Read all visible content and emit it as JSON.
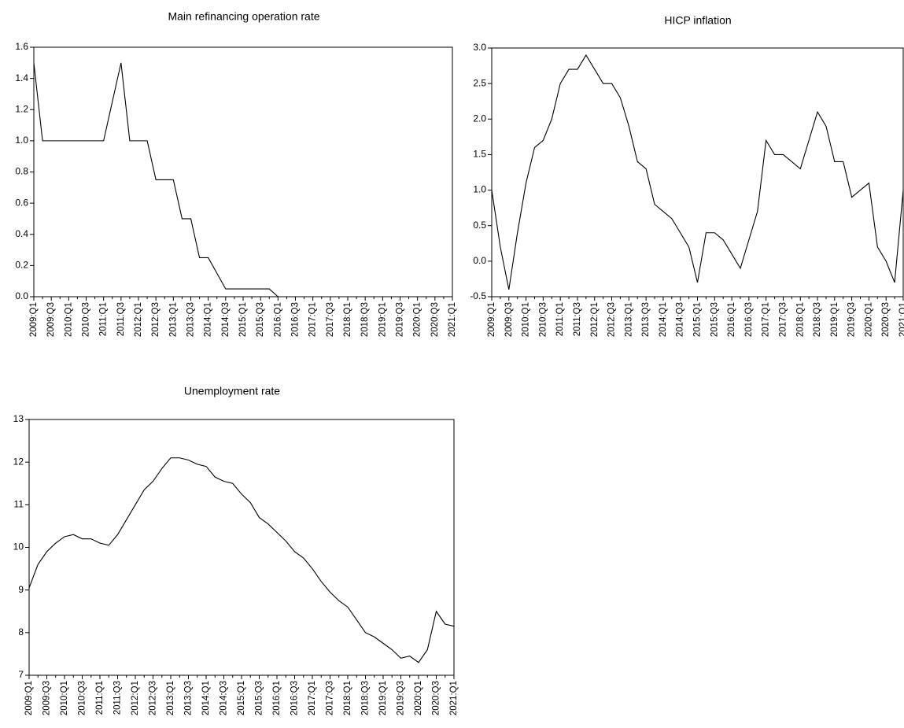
{
  "chart_data": [
    {
      "type": "line",
      "title": "Main refinancing operation rate",
      "categories": [
        "2009:Q1",
        null,
        "2009:Q3",
        null,
        "2010:Q1",
        null,
        "2010:Q3",
        null,
        "2011:Q1",
        null,
        "2011:Q3",
        null,
        "2012:Q1",
        null,
        "2012:Q3",
        null,
        "2013:Q1",
        null,
        "2013:Q3",
        null,
        "2014:Q1",
        null,
        "2014:Q3",
        null,
        "2015:Q1",
        null,
        "2015:Q3",
        null,
        "2016:Q1",
        null,
        "2016:Q3",
        null,
        "2017:Q1",
        null,
        "2017:Q3",
        null,
        "2018:Q1",
        null,
        "2018:Q3",
        null,
        "2019:Q1",
        null,
        "2019:Q3",
        null,
        "2020:Q1",
        null,
        "2020:Q3",
        null,
        "2021:Q1"
      ],
      "values": [
        1.5,
        1.0,
        1.0,
        1.0,
        1.0,
        1.0,
        1.0,
        1.0,
        1.0,
        1.25,
        1.5,
        1.0,
        1.0,
        1.0,
        0.75,
        0.75,
        0.75,
        0.5,
        0.5,
        0.25,
        0.25,
        0.15,
        0.05,
        0.05,
        0.05,
        0.05,
        0.05,
        0.05,
        0,
        0,
        0,
        0,
        0,
        0,
        0,
        0,
        0,
        0,
        0,
        0,
        0,
        0,
        0,
        0,
        0,
        0,
        0,
        0,
        0
      ],
      "color": "#000000",
      "ylim": [
        0,
        1.6
      ],
      "yticks": [
        {
          "value": 0,
          "label": "0.0"
        },
        0.2,
        0.4,
        0.6,
        0.8,
        {
          "value": 1,
          "label": "1.0"
        },
        1.2,
        1.4,
        1.6
      ]
    },
    {
      "type": "line",
      "title": "HICP inflation",
      "categories": [
        "2009:Q1",
        null,
        "2009:Q3",
        null,
        "2010:Q1",
        null,
        "2010:Q3",
        null,
        "2011:Q1",
        null,
        "2011:Q3",
        null,
        "2012:Q1",
        null,
        "2012:Q3",
        null,
        "2013:Q1",
        null,
        "2013:Q3",
        null,
        "2014:Q1",
        null,
        "2014:Q3",
        null,
        "2015:Q1",
        null,
        "2015:Q3",
        null,
        "2016:Q1",
        null,
        "2016:Q3",
        null,
        "2017:Q1",
        null,
        "2017:Q3",
        null,
        "2018:Q1",
        null,
        "2018:Q3",
        null,
        "2019:Q1",
        null,
        "2019:Q3",
        null,
        "2020:Q1",
        null,
        "2020:Q3",
        null,
        "2021:Q1"
      ],
      "values": [
        1.0,
        0.2,
        -0.4,
        0.4,
        1.1,
        1.6,
        1.7,
        2.0,
        2.5,
        2.7,
        2.7,
        2.9,
        2.7,
        2.5,
        2.5,
        2.3,
        1.9,
        1.4,
        1.3,
        0.8,
        0.7,
        0.6,
        0.4,
        0.2,
        -0.3,
        0.4,
        0.4,
        0.3,
        0.1,
        -0.1,
        0.3,
        0.7,
        1.7,
        1.5,
        1.5,
        1.4,
        1.3,
        1.7,
        2.1,
        1.9,
        1.4,
        1.4,
        0.9,
        1.0,
        1.1,
        0.2,
        0.0,
        -0.3,
        1.0
      ],
      "color": "#000000",
      "ylim": [
        -0.5,
        3.0
      ],
      "yticks": [
        -0.5,
        {
          "value": 0,
          "label": "0.0"
        },
        0.5,
        {
          "value": 1,
          "label": "1.0"
        },
        1.5,
        {
          "value": 2,
          "label": "2.0"
        },
        2.5,
        {
          "value": 3,
          "label": "3.0"
        }
      ]
    },
    {
      "type": "line",
      "title": "Unemployment rate",
      "categories": [
        "2009:Q1",
        null,
        "2009:Q3",
        null,
        "2010:Q1",
        null,
        "2010:Q3",
        null,
        "2011:Q1",
        null,
        "2011:Q3",
        null,
        "2012:Q1",
        null,
        "2012:Q3",
        null,
        "2013:Q1",
        null,
        "2013:Q3",
        null,
        "2014:Q1",
        null,
        "2014:Q3",
        null,
        "2015:Q1",
        null,
        "2015:Q3",
        null,
        "2016:Q1",
        null,
        "2016:Q3",
        null,
        "2017:Q1",
        null,
        "2017:Q3",
        null,
        "2018:Q1",
        null,
        "2018:Q3",
        null,
        "2019:Q1",
        null,
        "2019:Q3",
        null,
        "2020:Q1",
        null,
        "2020:Q3",
        null,
        "2021:Q1"
      ],
      "values": [
        9.05,
        9.6,
        9.9,
        10.1,
        10.25,
        10.3,
        10.2,
        10.2,
        10.1,
        10.05,
        10.3,
        10.65,
        11.0,
        11.35,
        11.55,
        11.85,
        12.1,
        12.1,
        12.05,
        11.95,
        11.9,
        11.65,
        11.55,
        11.5,
        11.25,
        11.05,
        10.7,
        10.55,
        10.35,
        10.15,
        9.9,
        9.75,
        9.5,
        9.2,
        8.95,
        8.75,
        8.6,
        8.3,
        8.0,
        7.9,
        7.75,
        7.6,
        7.4,
        7.45,
        7.3,
        7.6,
        8.5,
        8.2,
        8.15
      ],
      "color": "#000000",
      "ylim": [
        7,
        13
      ],
      "yticks": [
        7,
        8,
        9,
        10,
        11,
        12,
        13
      ]
    }
  ]
}
